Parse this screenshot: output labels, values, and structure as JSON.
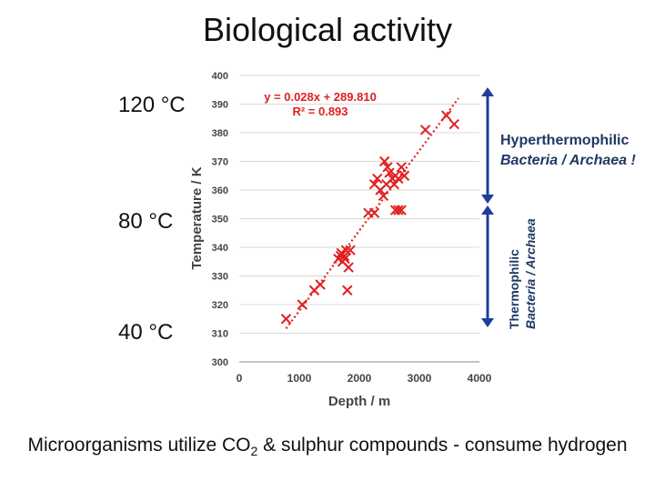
{
  "slide": {
    "title": "Biological activity",
    "temp_labels": [
      "120 °C",
      "80 °C",
      "40 °C"
    ],
    "hyper_line1": "Hyperthermophilic",
    "hyper_line2": "Bacteria / Archaea !",
    "thermo_line1": "Thermophilic",
    "thermo_line2": "Bacteria / Archaea",
    "caption_pre": "Microorganisms utilize CO",
    "caption_sub": "2",
    "caption_post": " & sulphur compounds -  consume hydrogen"
  },
  "colors": {
    "marker": "#e02020",
    "trend": "#e02020",
    "arrow": "#1f3e9c",
    "axis": "#888888",
    "grid": "#d9d9d9",
    "text": "#444444"
  },
  "chart_data": {
    "type": "scatter",
    "xlabel": "Depth / m",
    "ylabel": "Temperature / K",
    "xlim": [
      0,
      4000
    ],
    "ylim": [
      300,
      400
    ],
    "xticks": [
      0,
      1000,
      2000,
      3000,
      4000
    ],
    "yticks": [
      300,
      310,
      320,
      330,
      340,
      350,
      360,
      370,
      380,
      390,
      400
    ],
    "grid": "horizontal",
    "trendline": {
      "slope": 0.028,
      "intercept": 289.81,
      "x_range": [
        780,
        3650
      ],
      "equation": "y = 0.028x + 289.810",
      "r2": "R² = 0.893"
    },
    "points": [
      [
        780,
        315
      ],
      [
        1050,
        320
      ],
      [
        1250,
        325
      ],
      [
        1350,
        327
      ],
      [
        1800,
        325
      ],
      [
        1650,
        336
      ],
      [
        1700,
        338
      ],
      [
        1720,
        335
      ],
      [
        1750,
        337
      ],
      [
        1780,
        339
      ],
      [
        1690,
        337
      ],
      [
        1760,
        336
      ],
      [
        1820,
        333
      ],
      [
        1850,
        339
      ],
      [
        2150,
        352
      ],
      [
        2250,
        352
      ],
      [
        2250,
        362
      ],
      [
        2300,
        364
      ],
      [
        2350,
        360
      ],
      [
        2400,
        358
      ],
      [
        2450,
        362
      ],
      [
        2420,
        370
      ],
      [
        2470,
        368
      ],
      [
        2500,
        366
      ],
      [
        2550,
        364
      ],
      [
        2580,
        362
      ],
      [
        2600,
        365
      ],
      [
        2650,
        364
      ],
      [
        2700,
        368
      ],
      [
        2750,
        365
      ],
      [
        2600,
        353
      ],
      [
        2650,
        353
      ],
      [
        2700,
        353
      ],
      [
        3100,
        381
      ],
      [
        3450,
        386
      ],
      [
        3580,
        383
      ]
    ]
  }
}
